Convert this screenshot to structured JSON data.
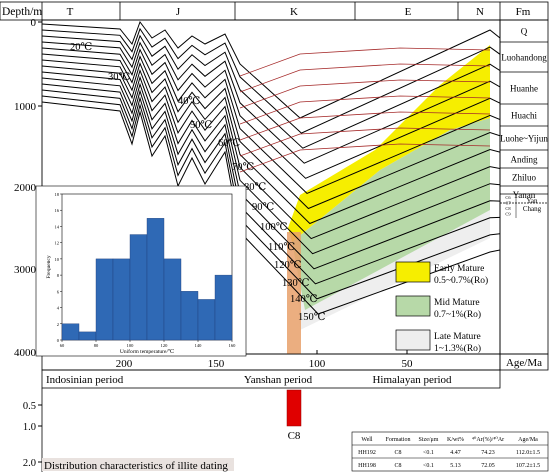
{
  "header": {
    "depth_label": "Depth/m",
    "periods": [
      "T",
      "J",
      "K",
      "E",
      "N"
    ],
    "fm_header": "Fm",
    "age_label": "Age/Ma"
  },
  "formations": [
    "Q",
    "Luohandong",
    "Huanhe",
    "Huachi",
    "Luohe~Yijun",
    "Anding",
    "Zhiluo",
    "Yanan"
  ],
  "yanchang": {
    "label": "Yan Chang",
    "subunits": [
      "C6",
      "C7",
      "C8",
      "C9"
    ]
  },
  "isotherm_labels": [
    "20℃",
    "30℃",
    "40℃",
    "50℃",
    "60℃",
    "70℃",
    "80℃",
    "90℃",
    "100℃",
    "110℃",
    "120℃",
    "130℃",
    "140℃",
    "150℃"
  ],
  "legend": [
    {
      "title": "Early Mature",
      "range": "0.5~0.7%(Ro)",
      "color": "#f6ee00"
    },
    {
      "title": "Mid Mature",
      "range": "0.7~1%(Ro)",
      "color": "#b7d9a8"
    },
    {
      "title": "Late Mature",
      "range": "1~1.3%(Ro)",
      "color": "#eeeeee"
    }
  ],
  "tectonic_periods": [
    "Indosinian period",
    "Yanshan period",
    "Himalayan period"
  ],
  "illite_title": "Distribution characteristics of illite dating",
  "illite_bar_label": "C8",
  "illite_table": {
    "headers": [
      "Well",
      "Formation",
      "Size/μm",
      "K/wt%",
      "⁴⁰Ar(%)/⁴⁰Ar",
      "Age/Ma"
    ],
    "rows": [
      [
        "HH192",
        "C8",
        "<0.1",
        "4.47",
        "74.23",
        "112.0±1.5"
      ],
      [
        "HH198",
        "C8",
        "<0.1",
        "5.13",
        "72.05",
        "107.2±1.5"
      ]
    ]
  },
  "chart_data": [
    {
      "type": "line",
      "description_role": "burial_history",
      "x_axis": {
        "label": "Age/Ma",
        "ticks": [
          200,
          150,
          100,
          50
        ],
        "range": [
          250,
          0
        ],
        "reversed": true
      },
      "y_axis": {
        "label": "Depth/m",
        "ticks": [
          0,
          1000,
          2000,
          3000,
          4000
        ],
        "range": [
          0,
          4000
        ],
        "reversed": true
      },
      "series_count": 14,
      "maturity_windows": [
        "Early Mature",
        "Mid Mature",
        "Late Mature"
      ]
    },
    {
      "type": "bar",
      "description_role": "inset_histogram",
      "xlabel": "Uniform temperature/℃",
      "ylabel": "Frequency",
      "x_ticks": [
        60,
        80,
        100,
        120,
        140,
        160
      ],
      "y_ticks": [
        0,
        2,
        4,
        6,
        8,
        10,
        12,
        14,
        16,
        18
      ],
      "ylim": [
        0,
        18
      ],
      "bin_edges": [
        60,
        70,
        80,
        90,
        100,
        110,
        120,
        130,
        140,
        150,
        160
      ],
      "values": [
        2,
        1,
        10,
        10,
        13,
        15,
        10,
        6,
        5,
        8
      ],
      "bar_color": "#2f69b5"
    },
    {
      "type": "bar",
      "description_role": "illite_age_bar",
      "y_ticks": [
        0.5,
        1.0,
        2.0
      ],
      "x_range": [
        107.2,
        112.0
      ],
      "label": "C8",
      "color": "#e00000"
    }
  ]
}
